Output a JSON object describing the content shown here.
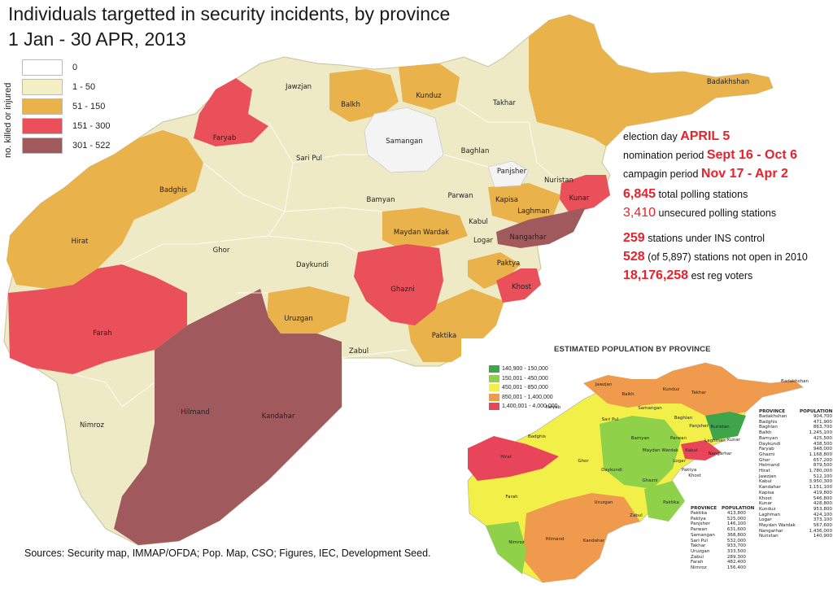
{
  "title": {
    "line1": "Individuals targetted in security incidents, by province",
    "line2": "1 Jan - 30 APR, 2013"
  },
  "legend": {
    "axis_label": "no. killed or injured",
    "items": [
      {
        "label": "0",
        "color": "#ffffff"
      },
      {
        "label": "1 - 50",
        "color": "#f5f0c4"
      },
      {
        "label": "51 - 150",
        "color": "#e9b24a"
      },
      {
        "label": "151 - 300",
        "color": "#e9505a"
      },
      {
        "label": "301 - 522",
        "color": "#a05a5e"
      }
    ]
  },
  "provinces": [
    {
      "name": "Badakhshan"
    },
    {
      "name": "Jawzjan"
    },
    {
      "name": "Balkh"
    },
    {
      "name": "Kunduz"
    },
    {
      "name": "Takhar"
    },
    {
      "name": "Faryab"
    },
    {
      "name": "Samangan"
    },
    {
      "name": "Baghlan"
    },
    {
      "name": "Sari Pul"
    },
    {
      "name": "Panjsher"
    },
    {
      "name": "Nuristan"
    },
    {
      "name": "Badghis"
    },
    {
      "name": "Bamyan"
    },
    {
      "name": "Parwan"
    },
    {
      "name": "Kapisa"
    },
    {
      "name": "Kunar"
    },
    {
      "name": "Laghman"
    },
    {
      "name": "Kabul"
    },
    {
      "name": "Maydan Wardak"
    },
    {
      "name": "Nangarhar"
    },
    {
      "name": "Hirat"
    },
    {
      "name": "Ghor"
    },
    {
      "name": "Logar"
    },
    {
      "name": "Daykundi"
    },
    {
      "name": "Paktya"
    },
    {
      "name": "Ghazni"
    },
    {
      "name": "Khost"
    },
    {
      "name": "Farah"
    },
    {
      "name": "Uruzgan"
    },
    {
      "name": "Paktika"
    },
    {
      "name": "Zabul"
    },
    {
      "name": "Nimroz"
    },
    {
      "name": "Hilmand"
    },
    {
      "name": "Kandahar"
    }
  ],
  "stats": {
    "election_label": "election day",
    "election_value": "APRIL 5",
    "nomination_label": "nomination period",
    "nomination_value": "Sept 16 - Oct 6",
    "campaign_label": "campagin period",
    "campaign_value": "Nov 17 - Apr 2",
    "polling_value": "6,845",
    "polling_label": "total polling stations",
    "unsecured_value": "3,410",
    "unsecured_label": "unsecured polling stations",
    "ins_value": "259",
    "ins_label": "stations under  INS control",
    "notopen_value": "528",
    "notopen_label": "(of 5,897) stations not open in 2010",
    "voters_value": "18,176,258",
    "voters_label": "est reg voters"
  },
  "inset": {
    "title": "ESTIMATED POPULATION BY PROVINCE",
    "legend": [
      {
        "label": "140,900 - 150,000",
        "color": "#3fa54a"
      },
      {
        "label": "150,001 - 450,000",
        "color": "#8fd24a"
      },
      {
        "label": "450,001 - 850,000",
        "color": "#f2ef48"
      },
      {
        "label": "850,001 - 1,400,000",
        "color": "#ef9a4c"
      },
      {
        "label": "1,400,001 - 4,000,000",
        "color": "#e8445a"
      }
    ],
    "table_header": {
      "province": "PROVINCE",
      "population": "POPULATION"
    },
    "table_right": [
      {
        "p": "Badakhshan",
        "v": "904,700"
      },
      {
        "p": "Badghis",
        "v": "471,900"
      },
      {
        "p": "Baghlan",
        "v": "863,700"
      },
      {
        "p": "Balkh",
        "v": "1,245,100"
      },
      {
        "p": "Bamyan",
        "v": "425,500"
      },
      {
        "p": "Daykundi",
        "v": "438,500"
      },
      {
        "p": "Faryab",
        "v": "948,000"
      },
      {
        "p": "Ghazni",
        "v": "1,168,800"
      },
      {
        "p": "Ghor",
        "v": "657,200"
      },
      {
        "p": "Helmand",
        "v": "879,500"
      },
      {
        "p": "Hirat",
        "v": "1,780,000"
      },
      {
        "p": "Jawzjan",
        "v": "512,100"
      },
      {
        "p": "Kabul",
        "v": "3,950,300"
      },
      {
        "p": "Kandahar",
        "v": "1,151,100"
      },
      {
        "p": "Kapisa",
        "v": "419,800"
      },
      {
        "p": "Khost",
        "v": "546,800"
      },
      {
        "p": "Kunar",
        "v": "428,800"
      },
      {
        "p": "Kunduz",
        "v": "953,800"
      },
      {
        "p": "Laghman",
        "v": "424,100"
      },
      {
        "p": "Logar",
        "v": "373,100"
      },
      {
        "p": "Maydan Wardak",
        "v": "567,600"
      },
      {
        "p": "Nangarhar",
        "v": "1,436,000"
      },
      {
        "p": "Nuristan",
        "v": "140,900"
      }
    ],
    "table_left": [
      {
        "p": "Paktika",
        "v": "413,800"
      },
      {
        "p": "Paktya",
        "v": "525,000"
      },
      {
        "p": "Panjsher",
        "v": "146,100"
      },
      {
        "p": "Parwan",
        "v": "631,600"
      },
      {
        "p": "Samangan",
        "v": "368,800"
      },
      {
        "p": "Sari Pul",
        "v": "532,000"
      },
      {
        "p": "Takhar",
        "v": "933,700"
      },
      {
        "p": "Uruzgan",
        "v": "333,500"
      },
      {
        "p": "Zabul",
        "v": "289,300"
      },
      {
        "p": "Farah",
        "v": "482,400"
      },
      {
        "p": "Nimroz",
        "v": "156,400"
      }
    ],
    "labels": [
      {
        "name": "Badakhshan"
      },
      {
        "name": "Jawzjan"
      },
      {
        "name": "Balkh"
      },
      {
        "name": "Kunduz"
      },
      {
        "name": "Takhar"
      },
      {
        "name": "Faryab"
      },
      {
        "name": "Samangan"
      },
      {
        "name": "Sari Pul"
      },
      {
        "name": "Baghlan"
      },
      {
        "name": "Panjsher"
      },
      {
        "name": "Nuristan"
      },
      {
        "name": "Badghis"
      },
      {
        "name": "Bamyan"
      },
      {
        "name": "Parwan"
      },
      {
        "name": "Laghman"
      },
      {
        "name": "Kunar"
      },
      {
        "name": "Maydan Wardak"
      },
      {
        "name": "Kabul"
      },
      {
        "name": "Nangarhar"
      },
      {
        "name": "Hirat"
      },
      {
        "name": "Ghor"
      },
      {
        "name": "Logar"
      },
      {
        "name": "Daykundi"
      },
      {
        "name": "Paktya"
      },
      {
        "name": "Khost"
      },
      {
        "name": "Ghazni"
      },
      {
        "name": "Farah"
      },
      {
        "name": "Uruzgan"
      },
      {
        "name": "Paktika"
      },
      {
        "name": "Zabul"
      },
      {
        "name": "Nimroz"
      },
      {
        "name": "Hilmand"
      },
      {
        "name": "Kandahar"
      }
    ]
  },
  "sources": "Sources: Security map, IMMAP/OFDA; Pop. Map, CSO; Figures, IEC, Development Seed."
}
